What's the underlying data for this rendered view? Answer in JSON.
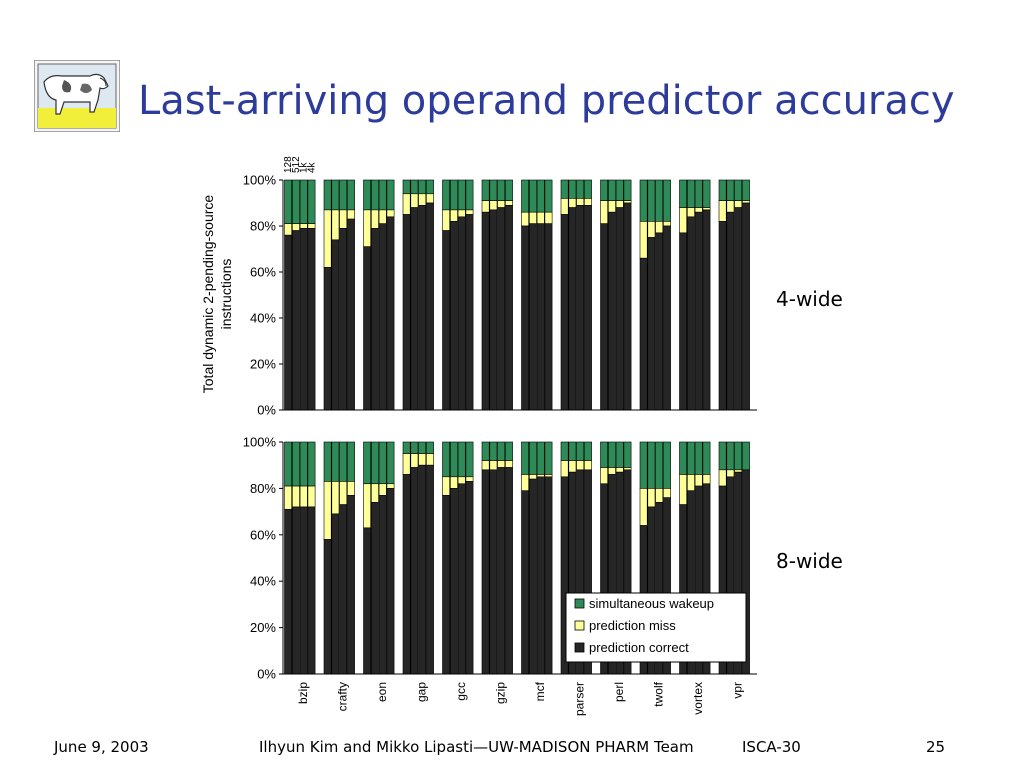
{
  "slide": {
    "title": "Last-arriving operand predictor accuracy",
    "logo_icon": "cow-logo",
    "label_top": "4-wide",
    "label_bottom": "8-wide"
  },
  "footer": {
    "date": "June 9, 2003",
    "authors": "Ilhyun Kim and Mikko Lipasti—UW-MADISON PHARM Team",
    "conference": "ISCA-30",
    "page": "25"
  },
  "chart_data": {
    "type": "bar",
    "stacked": true,
    "ylabel_lines": [
      "Total dynamic 2-pending-source",
      "instructions"
    ],
    "yticks": [
      "0%",
      "20%",
      "40%",
      "60%",
      "80%",
      "100%"
    ],
    "ylim": [
      0,
      100
    ],
    "benchmarks": [
      "bzip",
      "crafty",
      "eon",
      "gap",
      "gcc",
      "gzip",
      "mcf",
      "parser",
      "perl",
      "twolf",
      "vortex",
      "vpr"
    ],
    "table_sizes": [
      "128",
      "512",
      "1k",
      "4k"
    ],
    "series_names": [
      "prediction correct",
      "prediction miss",
      "simultaneous wakeup"
    ],
    "colors": {
      "correct": "#262626",
      "miss": "#ffff99",
      "wakeup": "#2e8b57"
    },
    "legend": {
      "position": "bottom-right",
      "entries": [
        "simultaneous wakeup",
        "prediction miss",
        "prediction correct"
      ]
    },
    "panels": [
      {
        "name": "4-wide",
        "correct_plus_miss": [
          81,
          87,
          87,
          94,
          87,
          91,
          86,
          92,
          91,
          82,
          88,
          91
        ],
        "correct": [
          [
            76,
            78,
            79,
            79
          ],
          [
            62,
            74,
            79,
            83
          ],
          [
            71,
            79,
            81,
            84
          ],
          [
            85,
            88,
            89,
            90
          ],
          [
            78,
            82,
            84,
            85
          ],
          [
            86,
            87,
            88,
            89
          ],
          [
            80,
            81,
            81,
            81
          ],
          [
            85,
            88,
            89,
            89
          ],
          [
            81,
            86,
            88,
            90
          ],
          [
            66,
            75,
            77,
            80
          ],
          [
            77,
            84,
            86,
            87
          ],
          [
            82,
            86,
            88,
            90
          ]
        ]
      },
      {
        "name": "8-wide",
        "correct_plus_miss": [
          81,
          83,
          82,
          95,
          85,
          92,
          86,
          92,
          89,
          80,
          86,
          88
        ],
        "correct": [
          [
            71,
            72,
            72,
            72
          ],
          [
            58,
            69,
            73,
            77
          ],
          [
            63,
            74,
            77,
            80
          ],
          [
            86,
            89,
            90,
            90
          ],
          [
            77,
            80,
            82,
            83
          ],
          [
            88,
            88,
            89,
            89
          ],
          [
            79,
            84,
            85,
            85
          ],
          [
            85,
            87,
            88,
            88
          ],
          [
            82,
            86,
            87,
            88
          ],
          [
            64,
            72,
            74,
            76
          ],
          [
            73,
            79,
            81,
            82
          ],
          [
            81,
            85,
            87,
            88
          ]
        ]
      }
    ]
  }
}
